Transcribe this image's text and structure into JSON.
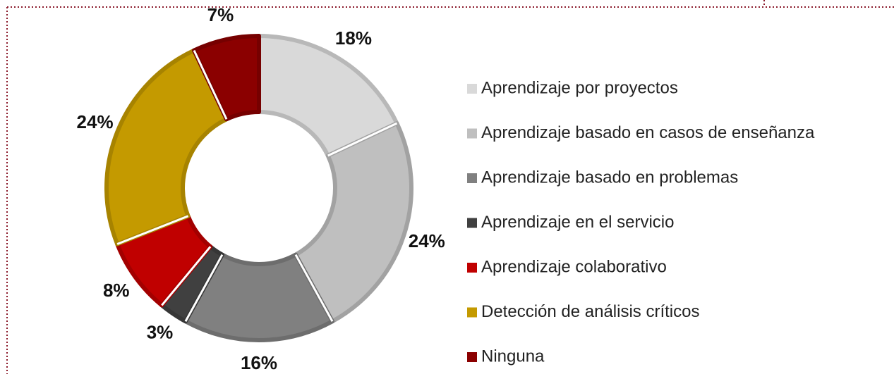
{
  "chart_data": {
    "type": "donut",
    "categories": [
      "Aprendizaje por proyectos",
      "Aprendizaje basado en casos de enseñanza",
      "Aprendizaje basado en problemas",
      "Aprendizaje en el servicio",
      "Aprendizaje colaborativo",
      "Detección de análisis críticos",
      "Ninguna"
    ],
    "values": [
      18,
      24,
      16,
      3,
      8,
      24,
      7
    ],
    "value_labels": [
      "18%",
      "24%",
      "16%",
      "3%",
      "8%",
      "24%",
      "7%"
    ],
    "colors": [
      "#d9d9d9",
      "#bfbfbf",
      "#808080",
      "#404040",
      "#c00000",
      "#c49a00",
      "#8b0000"
    ],
    "legend": "right"
  }
}
